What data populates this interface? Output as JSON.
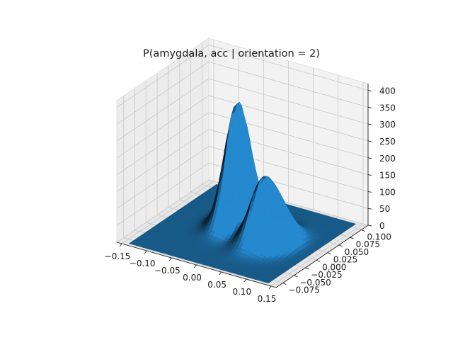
{
  "chart_data": {
    "type": "surface3d",
    "title": "P(amygdala, acc | orientation = 2)",
    "xlabel": "",
    "ylabel": "",
    "zlabel": "",
    "x_ticks": [
      "−0.15",
      "−0.10",
      "−0.05",
      "0.00",
      "0.05",
      "0.10",
      "0.15"
    ],
    "x_tick_values": [
      -0.15,
      -0.1,
      -0.05,
      0.0,
      0.05,
      0.1,
      0.15
    ],
    "y_ticks": [
      "−0.075",
      "−0.050",
      "−0.025",
      "0.000",
      "0.025",
      "0.050",
      "0.075",
      "0.100"
    ],
    "y_tick_values": [
      -0.075,
      -0.05,
      -0.025,
      0.0,
      0.025,
      0.05,
      0.075,
      0.1
    ],
    "z_ticks": [
      "0",
      "50",
      "100",
      "150",
      "200",
      "250",
      "300",
      "350",
      "400"
    ],
    "z_tick_values": [
      0,
      50,
      100,
      150,
      200,
      250,
      300,
      350,
      400
    ],
    "xlim": [
      -0.16,
      0.16
    ],
    "ylim": [
      -0.09,
      0.115
    ],
    "zlim": [
      0,
      420
    ],
    "grid": true,
    "surface_color": "#1f77b4",
    "peaks": [
      {
        "x": -0.03,
        "y": 0.035,
        "z": 360
      },
      {
        "x": 0.04,
        "y": 0.01,
        "z": 160
      },
      {
        "x": 0.07,
        "y": 0.015,
        "z": 100
      }
    ]
  }
}
